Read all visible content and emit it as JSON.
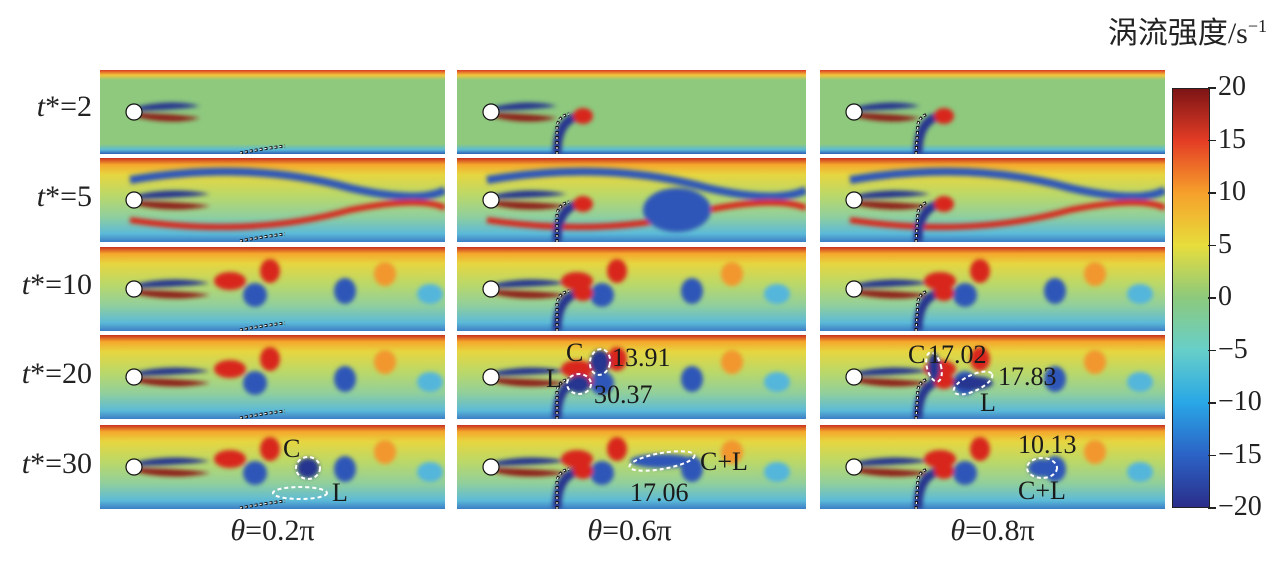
{
  "colorbar": {
    "unit_label": "涡流强度/s",
    "unit_superscript": "−1",
    "ticks": [
      "20",
      "15",
      "10",
      "5",
      "0",
      "−5",
      "−10",
      "−15",
      "−20"
    ],
    "range": [
      -20,
      20
    ],
    "colormap": [
      "#2b2e8a",
      "#2b63c6",
      "#29a7e6",
      "#67cfc9",
      "#8cc97d",
      "#e7dd3c",
      "#f6a12b",
      "#e43d25",
      "#7d1416"
    ]
  },
  "rows": [
    {
      "prefix": "t",
      "suffix": "*=2"
    },
    {
      "prefix": "t",
      "suffix": "*=5"
    },
    {
      "prefix": "t",
      "suffix": "*=10"
    },
    {
      "prefix": "t",
      "suffix": "*=20"
    },
    {
      "prefix": "t",
      "suffix": "*=30"
    }
  ],
  "columns": [
    {
      "prefix": "θ",
      "suffix": "=0.2π"
    },
    {
      "prefix": "θ",
      "suffix": "=0.6π"
    },
    {
      "prefix": "θ",
      "suffix": "=0.8π"
    }
  ],
  "annotations": {
    "c0r4_C": "C",
    "c0r4_L": "L",
    "c1r3_C": "C",
    "c1r3_L": "L",
    "c1r3_val1": "13.91",
    "c1r3_val2": "30.37",
    "c1r4_CL": "C+L",
    "c1r4_val": "17.06",
    "c2r3_C": "C",
    "c2r3_val1": "17.02",
    "c2r3_val2": "17.83",
    "c2r3_L": "L",
    "c2r4_val": "10.13",
    "c2r4_CL": "C+L"
  }
}
